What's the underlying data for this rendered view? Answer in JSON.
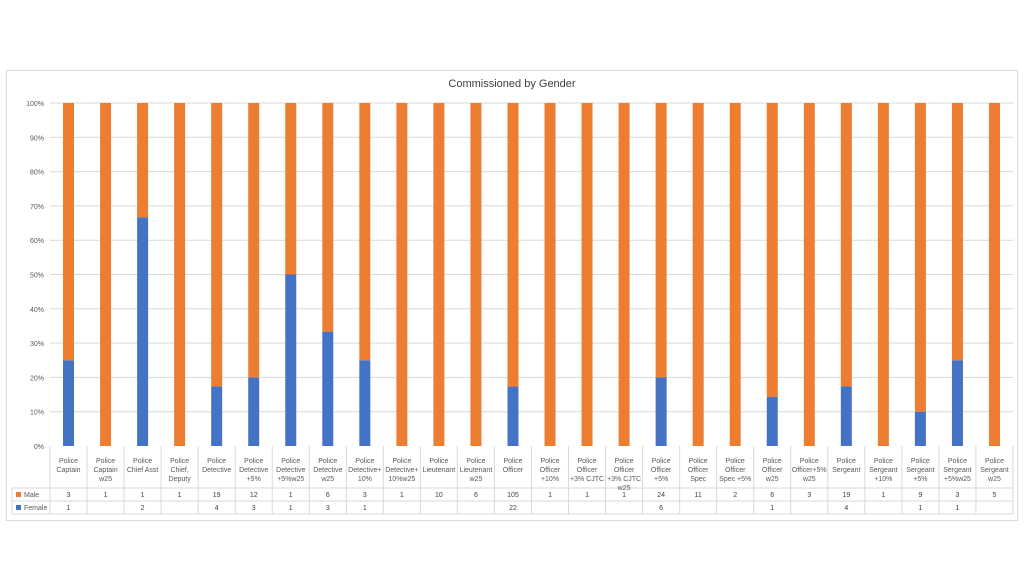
{
  "chart_data": {
    "type": "bar",
    "stacked": "percent",
    "title": "Commissioned by Gender",
    "y_ticks": [
      "0%",
      "10%",
      "20%",
      "30%",
      "40%",
      "50%",
      "60%",
      "70%",
      "80%",
      "90%",
      "100%"
    ],
    "ylim": [
      0,
      100
    ],
    "grid": true,
    "legend_placement": "table-rows",
    "categories": [
      [
        "Police",
        "Captain"
      ],
      [
        "Police",
        "Captain",
        "w25"
      ],
      [
        "Police",
        "Chief Asst"
      ],
      [
        "Police",
        "Chief,",
        "Deputy"
      ],
      [
        "Police",
        "Detective"
      ],
      [
        "Police",
        "Detective",
        "+5%"
      ],
      [
        "Police",
        "Detective",
        "+5%w25"
      ],
      [
        "Police",
        "Detective",
        "w25"
      ],
      [
        "Police",
        "Detective+",
        "10%"
      ],
      [
        "Police",
        "Detective+",
        "10%w25"
      ],
      [
        "Police",
        "Lieutenant"
      ],
      [
        "Police",
        "Lieutenant",
        "w25"
      ],
      [
        "Police",
        "Officer"
      ],
      [
        "Police",
        "Officer",
        "+10%"
      ],
      [
        "Police",
        "Officer",
        "+3% CJTC"
      ],
      [
        "Police",
        "Officer",
        "+3% CJTC",
        "w25"
      ],
      [
        "Police",
        "Officer",
        "+5%"
      ],
      [
        "Police",
        "Officer",
        "Spec"
      ],
      [
        "Police",
        "Officer",
        "Spec +5%"
      ],
      [
        "Police",
        "Officer",
        "w25"
      ],
      [
        "Police",
        "Officer+5%",
        "w25"
      ],
      [
        "Police",
        "Sergeant"
      ],
      [
        "Police",
        "Sergeant",
        "+10%"
      ],
      [
        "Police",
        "Sergeant",
        "+5%"
      ],
      [
        "Police",
        "Sergeant",
        "+5%w25"
      ],
      [
        "Police",
        "Sergeant",
        "w25"
      ]
    ],
    "series": [
      {
        "name": "Female",
        "color": "#4472c4",
        "values": [
          1,
          null,
          2,
          null,
          4,
          3,
          1,
          3,
          1,
          null,
          null,
          null,
          22,
          null,
          null,
          null,
          6,
          null,
          null,
          1,
          null,
          4,
          null,
          1,
          1,
          null
        ]
      },
      {
        "name": "Male",
        "color": "#ed7d31",
        "values": [
          3,
          1,
          1,
          1,
          19,
          12,
          1,
          6,
          3,
          1,
          10,
          6,
          105,
          1,
          1,
          1,
          24,
          11,
          2,
          6,
          3,
          19,
          1,
          9,
          3,
          5
        ]
      }
    ]
  }
}
